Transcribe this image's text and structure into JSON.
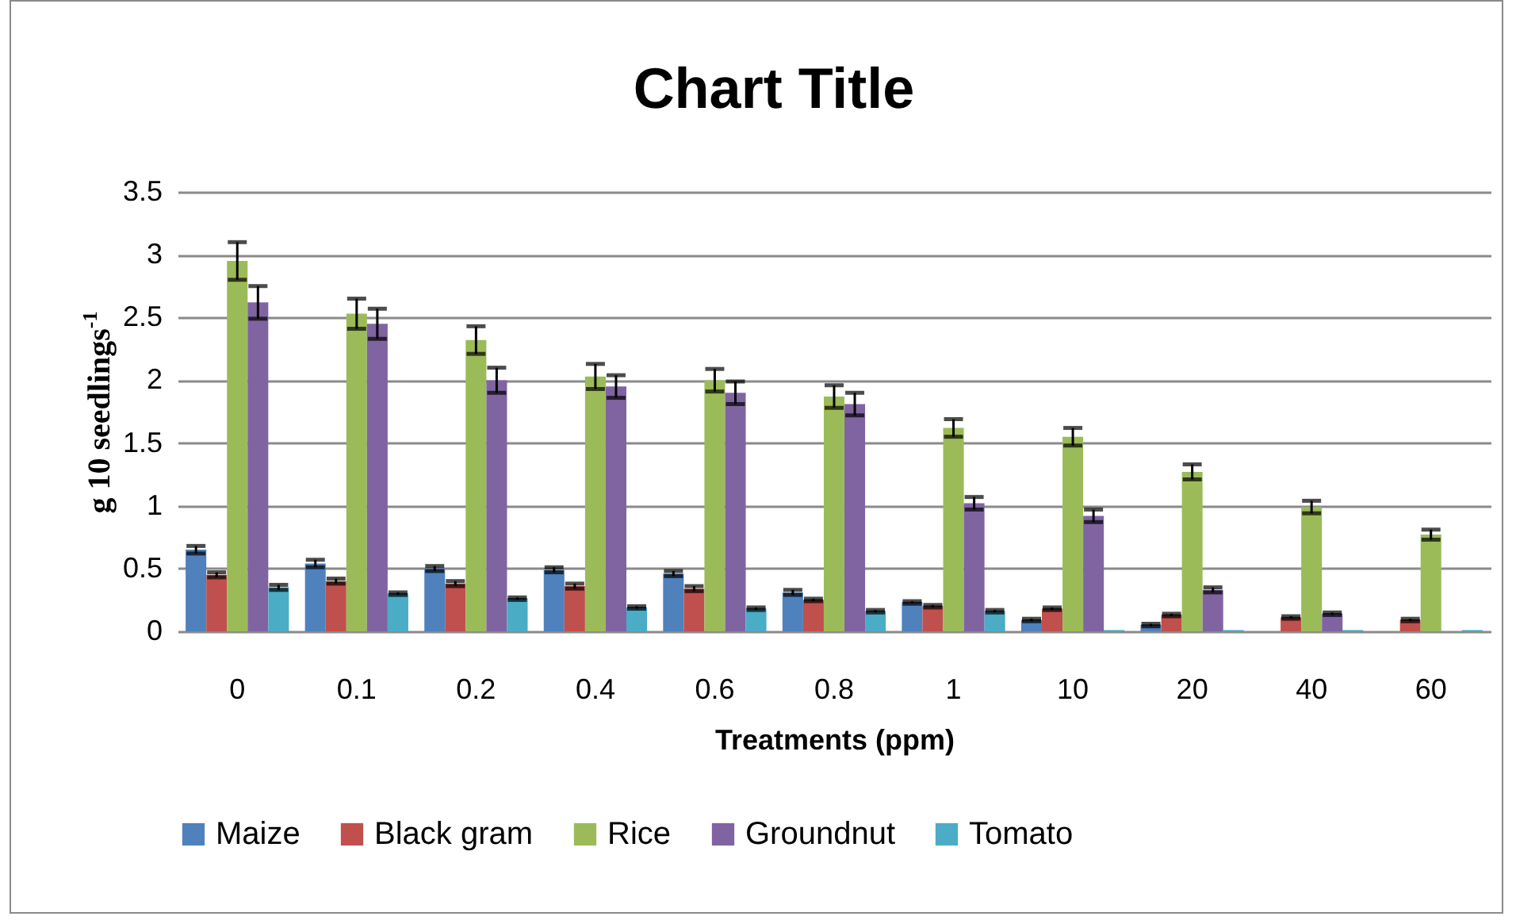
{
  "chart_data": {
    "type": "bar",
    "title": "Chart Title",
    "xlabel": "Treatments (ppm)",
    "ylabel": "g 10 seedlings$^{-1}$",
    "categories": [
      "0",
      "0.1",
      "0.2",
      "0.4",
      "0.6",
      "0.8",
      "1",
      "10",
      "20",
      "40",
      "60"
    ],
    "series": [
      {
        "name": "Maize",
        "color": "#4f81bd",
        "values": [
          0.65,
          0.54,
          0.5,
          0.49,
          0.46,
          0.31,
          0.23,
          0.09,
          0.05,
          null,
          0
        ],
        "errors": [
          0.03,
          0.03,
          0.02,
          0.02,
          0.02,
          0.02,
          0.01,
          0.01,
          0.01,
          null,
          null
        ]
      },
      {
        "name": "Black gram",
        "color": "#c0504d",
        "values": [
          0.45,
          0.4,
          0.38,
          0.36,
          0.34,
          0.25,
          0.2,
          0.18,
          0.13,
          0.11,
          0.09
        ],
        "errors": [
          0.02,
          0.02,
          0.02,
          0.02,
          0.02,
          0.01,
          0.01,
          0.01,
          0.01,
          0.01,
          0.01
        ]
      },
      {
        "name": "Rice",
        "color": "#9bbb59",
        "values": [
          2.95,
          2.53,
          2.32,
          2.03,
          2.0,
          1.87,
          1.62,
          1.55,
          1.27,
          0.99,
          0.77
        ],
        "errors": [
          0.15,
          0.12,
          0.11,
          0.1,
          0.09,
          0.09,
          0.07,
          0.07,
          0.06,
          0.05,
          0.04
        ]
      },
      {
        "name": "Groundnut",
        "color": "#8064a2",
        "values": [
          2.62,
          2.45,
          2.0,
          1.95,
          1.9,
          1.81,
          1.02,
          0.92,
          0.33,
          0.14,
          null
        ],
        "errors": [
          0.13,
          0.12,
          0.1,
          0.09,
          0.09,
          0.09,
          0.05,
          0.05,
          0.02,
          0.01,
          null
        ]
      },
      {
        "name": "Tomato",
        "color": "#4bacc6",
        "values": [
          0.35,
          0.3,
          0.26,
          0.19,
          0.18,
          0.16,
          0.16,
          0.01,
          0.01,
          0.01,
          0.01
        ],
        "errors": [
          0.02,
          0.01,
          0.01,
          0.01,
          0.01,
          0.01,
          0.01,
          null,
          null,
          null,
          null
        ]
      }
    ],
    "ylim": [
      0,
      3.5
    ],
    "yticks": [
      0,
      0.5,
      1,
      1.5,
      2,
      2.5,
      3,
      3.5
    ],
    "grid": "y",
    "legend": "bottom"
  }
}
